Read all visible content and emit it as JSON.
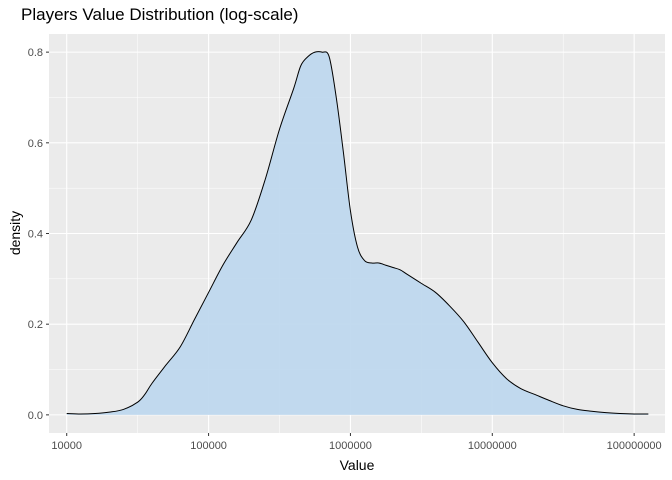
{
  "chart_data": {
    "type": "area",
    "title": "Players Value Distribution (log-scale)",
    "xlabel": "Value",
    "ylabel": "density",
    "x_scale": "log10",
    "xlim": [
      7500,
      165000000
    ],
    "ylim": [
      -0.04,
      0.84
    ],
    "x_ticks": [
      {
        "value": 10000,
        "label": "10000"
      },
      {
        "value": 100000,
        "label": "100000"
      },
      {
        "value": 1000000,
        "label": "1000000"
      },
      {
        "value": 10000000,
        "label": "10000000"
      },
      {
        "value": 100000000,
        "label": "100000000"
      }
    ],
    "y_ticks": [
      {
        "value": 0.0,
        "label": "0.0"
      },
      {
        "value": 0.2,
        "label": "0.2"
      },
      {
        "value": 0.4,
        "label": "0.4"
      },
      {
        "value": 0.6,
        "label": "0.6"
      },
      {
        "value": 0.8,
        "label": "0.8"
      }
    ],
    "grid": true,
    "fill_color": "#bdd7ee",
    "line_color": "#000000",
    "panel_color": "#ebebeb",
    "series": [
      {
        "x": [
          10000,
          12500,
          15850,
          20000,
          25100,
          31600,
          35500,
          40000,
          50100,
          63100,
          79400,
          100000,
          126000,
          158500,
          200000,
          251200,
          316200,
          398100,
          446700,
          501200,
          562300,
          631000,
          707900,
          794300,
          891300,
          1000000,
          1122000,
          1259000,
          1413000,
          1585000,
          1778000,
          1995000,
          2239000,
          2512000,
          3162000,
          3981000,
          5012000,
          6310000,
          7943000,
          10000000,
          12590000,
          15850000,
          19950000,
          25120000,
          31620000,
          39810000,
          50120000,
          63100000,
          79430000,
          100000000,
          125900000
        ],
        "y": [
          0.003,
          0.002,
          0.003,
          0.006,
          0.012,
          0.028,
          0.045,
          0.07,
          0.11,
          0.15,
          0.21,
          0.27,
          0.33,
          0.38,
          0.43,
          0.52,
          0.63,
          0.72,
          0.77,
          0.79,
          0.8,
          0.8,
          0.79,
          0.7,
          0.58,
          0.45,
          0.37,
          0.34,
          0.335,
          0.335,
          0.33,
          0.325,
          0.32,
          0.31,
          0.29,
          0.27,
          0.24,
          0.205,
          0.16,
          0.115,
          0.08,
          0.058,
          0.045,
          0.032,
          0.02,
          0.012,
          0.008,
          0.005,
          0.003,
          0.002,
          0.002
        ]
      }
    ]
  }
}
